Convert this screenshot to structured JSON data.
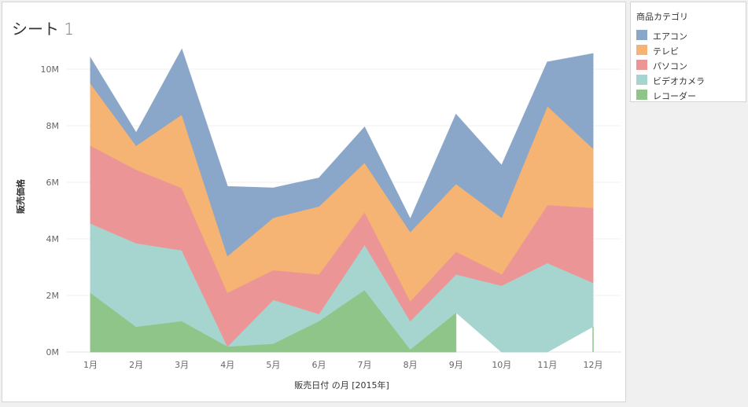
{
  "sheet": {
    "title_text": "シート",
    "title_num": "1"
  },
  "legend": {
    "title": "商品カテゴリ",
    "items": [
      {
        "label": "エアコン",
        "color": "#8aa6c8"
      },
      {
        "label": "テレビ",
        "color": "#f5b374"
      },
      {
        "label": "パソコン",
        "color": "#ec9596"
      },
      {
        "label": "ビデオカメラ",
        "color": "#a6d5d0"
      },
      {
        "label": "レコーダー",
        "color": "#8fc588"
      }
    ]
  },
  "chart_data": {
    "type": "area",
    "stacked": true,
    "xlabel": "販売日付 の月 [2015年]",
    "ylabel": "販売価格",
    "categories": [
      "1月",
      "2月",
      "3月",
      "4月",
      "5月",
      "6月",
      "7月",
      "8月",
      "9月",
      "10月",
      "11月",
      "12月"
    ],
    "ylim": [
      0,
      11000000
    ],
    "yticks": [
      0,
      2000000,
      4000000,
      6000000,
      8000000,
      10000000
    ],
    "ytick_labels": [
      "0M",
      "2M",
      "4M",
      "6M",
      "8M",
      "10M"
    ],
    "grid": true,
    "series": [
      {
        "name": "レコーダー",
        "color": "#8fc588",
        "values": [
          2100000,
          900000,
          1100000,
          200000,
          300000,
          1100000,
          2200000,
          100000,
          1400000,
          null,
          null,
          900000
        ]
      },
      {
        "name": "ビデオカメラ",
        "color": "#a6d5d0",
        "values": [
          2450000,
          2950000,
          2500000,
          0,
          1550000,
          250000,
          1600000,
          1000000,
          1350000,
          2350000,
          3150000,
          1550000
        ]
      },
      {
        "name": "パソコン",
        "color": "#ec9596",
        "values": [
          2750000,
          2600000,
          2200000,
          1900000,
          1050000,
          1400000,
          1150000,
          700000,
          800000,
          400000,
          2050000,
          2650000
        ]
      },
      {
        "name": "テレビ",
        "color": "#f5b374",
        "values": [
          2200000,
          850000,
          2600000,
          1300000,
          1850000,
          2400000,
          1750000,
          2450000,
          2400000,
          2000000,
          3500000,
          2100000
        ]
      },
      {
        "name": "エアコン",
        "color": "#8aa6c8",
        "values": [
          900000,
          450000,
          2300000,
          2450000,
          1050000,
          1000000,
          1250000,
          450000,
          2450000,
          1850000,
          1550000,
          3350000
        ]
      }
    ]
  }
}
